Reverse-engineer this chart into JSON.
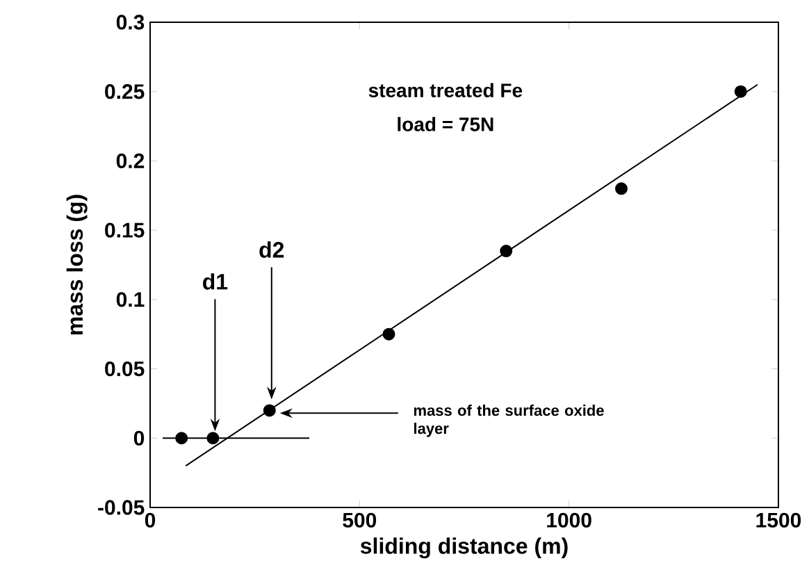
{
  "chart_data": {
    "type": "scatter",
    "xlabel": "sliding distance  (m)",
    "ylabel": "mass loss  (g)",
    "xlim": [
      0,
      1500
    ],
    "ylim": [
      -0.05,
      0.3
    ],
    "xticks": [
      0,
      500,
      1000,
      1500
    ],
    "yticks": [
      -0.05,
      0,
      0.05,
      0.1,
      0.15,
      0.2,
      0.25,
      0.3
    ],
    "marker": "circle",
    "series": [
      {
        "type": "scatter",
        "color": "#000000",
        "x": [
          75,
          150,
          285,
          570,
          850,
          1125,
          1410
        ],
        "values": [
          0,
          0,
          0.02,
          0.075,
          0.135,
          0.18,
          0.25
        ]
      },
      {
        "type": "line",
        "marker": "none",
        "color": "#000000",
        "x": [
          85,
          1450
        ],
        "values": [
          -0.02,
          0.255
        ]
      },
      {
        "type": "line",
        "marker": "none",
        "color": "#000000",
        "x": [
          30,
          380
        ],
        "values": [
          0,
          0
        ]
      }
    ],
    "annotations": [
      "steam treated Fe",
      "load = 75N",
      {
        "text": "d1",
        "x": 155,
        "y": 0.005
      },
      {
        "text": "d2",
        "x": 290,
        "y": 0.028
      },
      {
        "text": "mass of the surface oxide layer",
        "x": 310,
        "y": 0.018
      }
    ]
  }
}
